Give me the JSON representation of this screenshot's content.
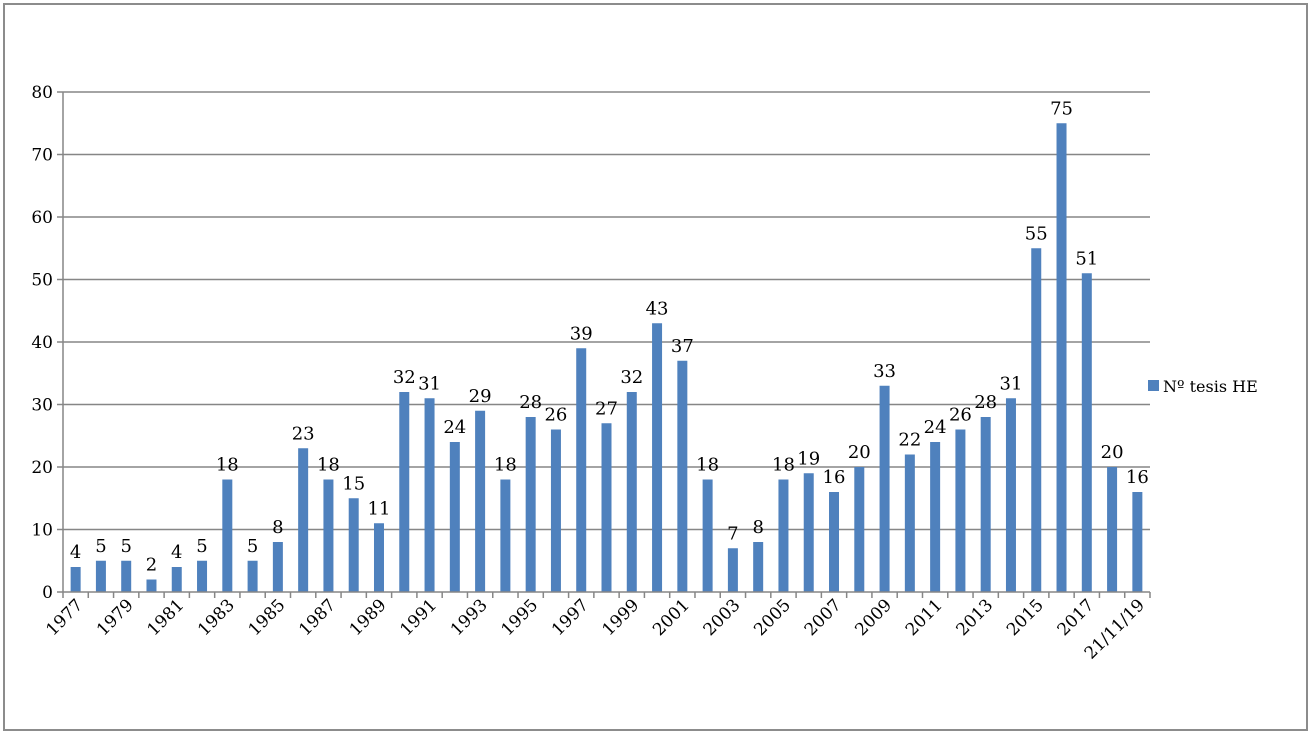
{
  "chart_data": {
    "type": "bar",
    "categories": [
      "1977",
      "1978",
      "1979",
      "1980",
      "1981",
      "1982",
      "1983",
      "1984",
      "1985",
      "1986",
      "1987",
      "1988",
      "1989",
      "1990",
      "1991",
      "1992",
      "1993",
      "1994",
      "1995",
      "1996",
      "1997",
      "1998",
      "1999",
      "2000",
      "2001",
      "2002",
      "2003",
      "2004",
      "2005",
      "2006",
      "2007",
      "2008",
      "2009",
      "2010",
      "2011",
      "2012",
      "2013",
      "2014",
      "2015",
      "2016",
      "2017",
      "2018",
      "21/11/19"
    ],
    "x_tick_labels": [
      "1977",
      "1979",
      "1981",
      "1983",
      "1985",
      "1987",
      "1989",
      "1991",
      "1993",
      "1995",
      "1997",
      "1999",
      "2001",
      "2003",
      "2005",
      "2007",
      "2009",
      "2011",
      "2013",
      "2015",
      "2017",
      "21/11/19"
    ],
    "series": [
      {
        "name": "Nº tesis HE",
        "color": "#4f81bd",
        "values": [
          4,
          5,
          5,
          2,
          4,
          5,
          18,
          5,
          8,
          23,
          18,
          15,
          11,
          32,
          31,
          24,
          29,
          18,
          28,
          26,
          39,
          27,
          32,
          43,
          37,
          18,
          7,
          8,
          18,
          19,
          16,
          20,
          33,
          22,
          24,
          26,
          28,
          31,
          55,
          75,
          51,
          20,
          16
        ]
      }
    ],
    "ylim": [
      0,
      80
    ],
    "y_ticks": [
      0,
      10,
      20,
      30,
      40,
      50,
      60,
      70,
      80
    ],
    "grid": true,
    "legend_position": "right"
  }
}
